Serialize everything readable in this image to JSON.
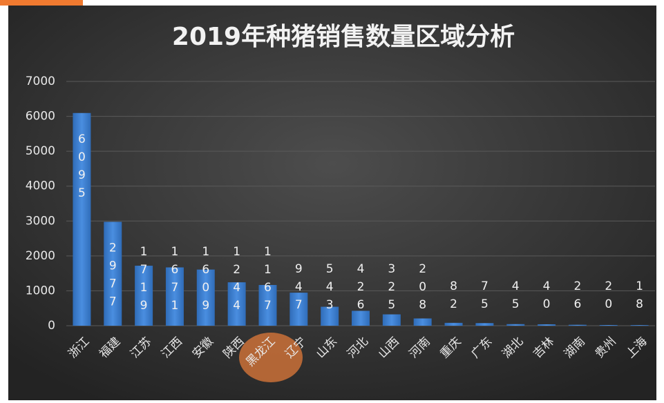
{
  "chart_data": {
    "type": "bar",
    "title": "2019年种猪销售数量区域分析",
    "categories": [
      "浙江",
      "福建",
      "江苏",
      "江西",
      "安徽",
      "陕西",
      "黑龙江",
      "辽宁",
      "山东",
      "河北",
      "山西",
      "河南",
      "重庆",
      "广东",
      "湖北",
      "吉林",
      "湖南",
      "贵州",
      "上海"
    ],
    "values": [
      6095,
      2977,
      1719,
      1671,
      1609,
      1244,
      1167,
      947,
      543,
      426,
      325,
      208,
      82,
      75,
      45,
      40,
      26,
      20,
      18
    ],
    "color": "#3c7fd0",
    "ylim": [
      0,
      7000
    ],
    "yticks": [
      0,
      1000,
      2000,
      3000,
      4000,
      5000,
      6000,
      7000
    ],
    "grid": true
  }
}
